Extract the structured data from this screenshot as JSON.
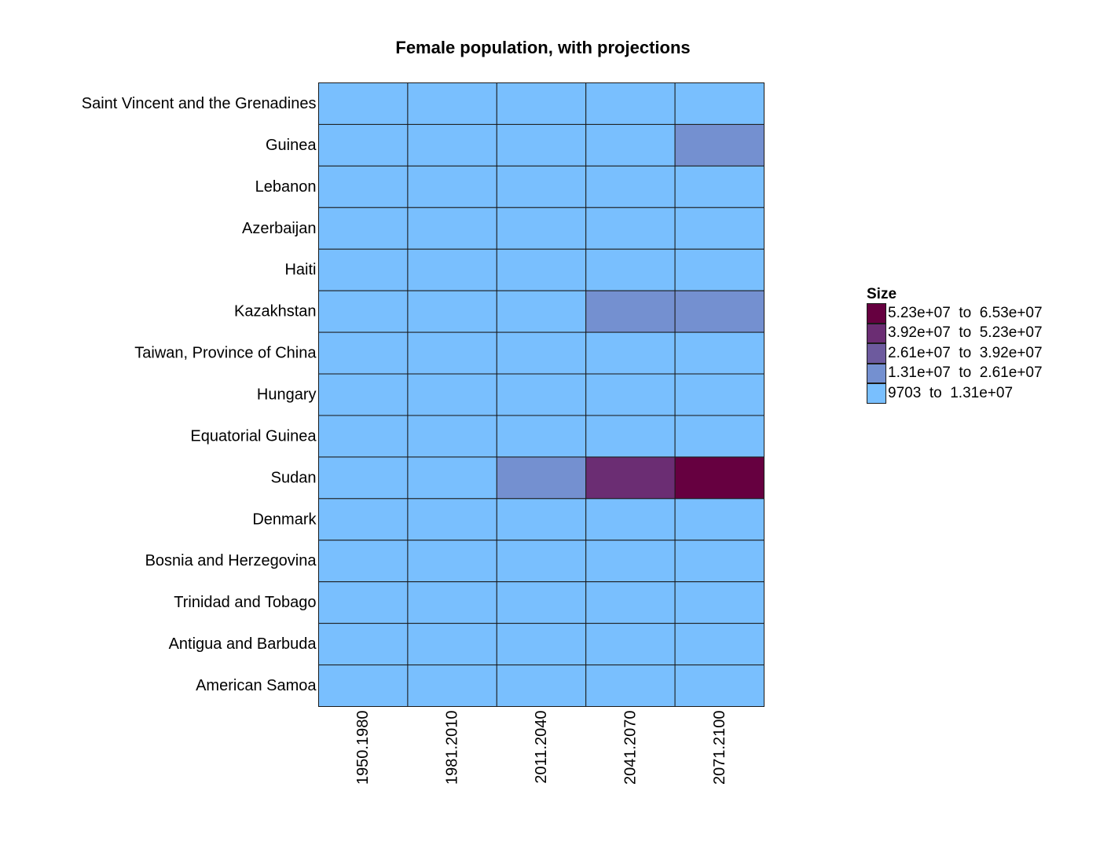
{
  "chart_data": {
    "type": "heatmap",
    "title": "Female population, with projections",
    "xlabel": "",
    "ylabel": "",
    "x_categories": [
      "1950.1980",
      "1981.2010",
      "2011.2040",
      "2041.2070",
      "2071.2100"
    ],
    "y_categories": [
      "Saint Vincent and the Grenadines",
      "Guinea",
      "Lebanon",
      "Azerbaijan",
      "Haiti",
      "Kazakhstan",
      "Taiwan, Province of China",
      "Hungary",
      "Equatorial Guinea",
      "Sudan",
      "Denmark",
      "Bosnia and Herzegovina",
      "Trinidad and Tobago",
      "Antigua and Barbuda",
      "American Samoa"
    ],
    "legend": {
      "title": "Size",
      "placement": "right",
      "bins": [
        {
          "label": "5.23e+07  to  6.53e+07",
          "color": "#660040"
        },
        {
          "label": "3.92e+07  to  5.23e+07",
          "color": "#6b2d73"
        },
        {
          "label": "2.61e+07  to  3.92e+07",
          "color": "#6d5a9e"
        },
        {
          "label": "1.31e+07  to  2.61e+07",
          "color": "#7490d0"
        },
        {
          "label": "9703  to  1.31e+07",
          "color": "#79bffe"
        }
      ]
    },
    "bin_index_by_row": [
      [
        4,
        4,
        4,
        4,
        4
      ],
      [
        4,
        4,
        4,
        4,
        3
      ],
      [
        4,
        4,
        4,
        4,
        4
      ],
      [
        4,
        4,
        4,
        4,
        4
      ],
      [
        4,
        4,
        4,
        4,
        4
      ],
      [
        4,
        4,
        4,
        3,
        3
      ],
      [
        4,
        4,
        4,
        4,
        4
      ],
      [
        4,
        4,
        4,
        4,
        4
      ],
      [
        4,
        4,
        4,
        4,
        4
      ],
      [
        4,
        4,
        3,
        1,
        0
      ],
      [
        4,
        4,
        4,
        4,
        4
      ],
      [
        4,
        4,
        4,
        4,
        4
      ],
      [
        4,
        4,
        4,
        4,
        4
      ],
      [
        4,
        4,
        4,
        4,
        4
      ],
      [
        4,
        4,
        4,
        4,
        4
      ]
    ],
    "grid": true,
    "cell_border_color": "#1a1a1a"
  }
}
